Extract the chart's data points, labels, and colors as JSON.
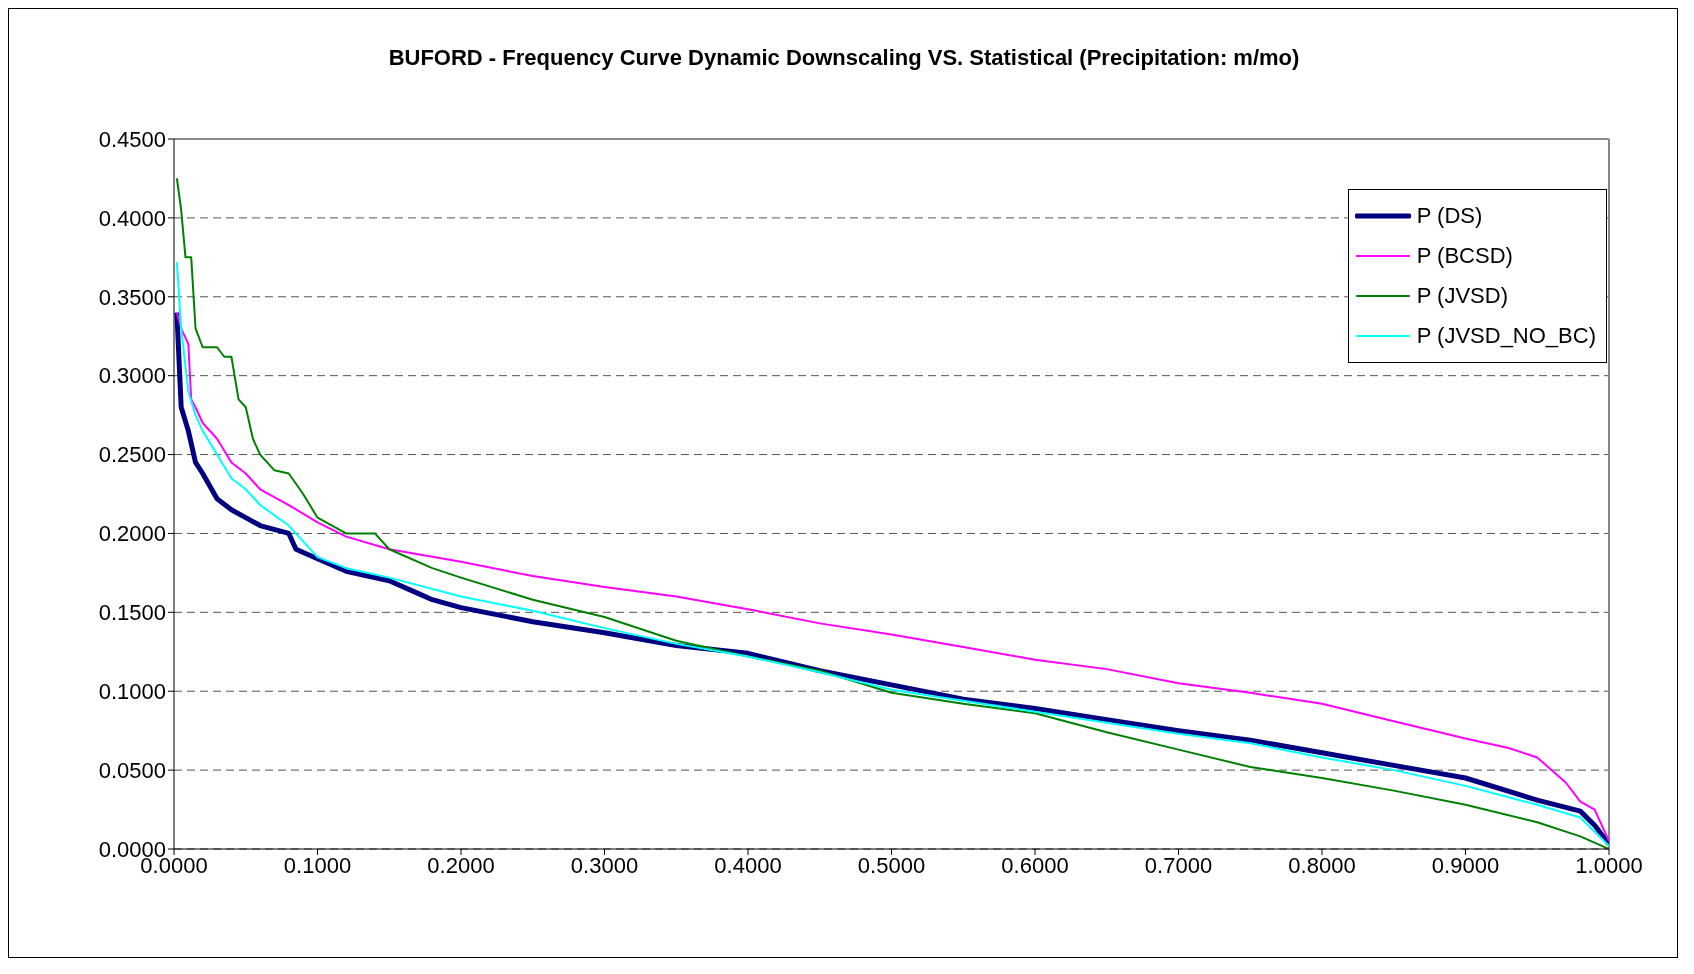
{
  "chart_data": {
    "type": "line",
    "title": "BUFORD - Frequency Curve Dynamic Downscaling VS. Statistical (Precipitation: m/mo)",
    "xlim": [
      0,
      1
    ],
    "ylim": [
      0,
      0.45
    ],
    "xticks": [
      {
        "value": 0,
        "label": "0.0000"
      },
      {
        "value": 0.1,
        "label": "0.1000"
      },
      {
        "value": 0.2,
        "label": "0.2000"
      },
      {
        "value": 0.3,
        "label": "0.3000"
      },
      {
        "value": 0.4,
        "label": "0.4000"
      },
      {
        "value": 0.5,
        "label": "0.5000"
      },
      {
        "value": 0.6,
        "label": "0.6000"
      },
      {
        "value": 0.7,
        "label": "0.7000"
      },
      {
        "value": 0.8,
        "label": "0.8000"
      },
      {
        "value": 0.9,
        "label": "0.9000"
      },
      {
        "value": 1,
        "label": "1.0000"
      }
    ],
    "yticks": [
      {
        "value": 0,
        "label": "0.0000"
      },
      {
        "value": 0.05,
        "label": "0.0500"
      },
      {
        "value": 0.1,
        "label": "0.1000"
      },
      {
        "value": 0.15,
        "label": "0.1500"
      },
      {
        "value": 0.2,
        "label": "0.2000"
      },
      {
        "value": 0.25,
        "label": "0.2500"
      },
      {
        "value": 0.3,
        "label": "0.3000"
      },
      {
        "value": 0.35,
        "label": "0.3500"
      },
      {
        "value": 0.4,
        "label": "0.4000"
      },
      {
        "value": 0.45,
        "label": "0.4500"
      }
    ],
    "grid": "y",
    "legend": "top right",
    "marker": "none",
    "line_style": "solid",
    "series": [
      {
        "name": "P (DS)",
        "color": "#000080",
        "x": [
          0.002,
          0.005,
          0.01,
          0.015,
          0.02,
          0.03,
          0.04,
          0.05,
          0.06,
          0.08,
          0.085,
          0.1,
          0.12,
          0.15,
          0.17,
          0.18,
          0.2,
          0.25,
          0.3,
          0.35,
          0.4,
          0.45,
          0.5,
          0.55,
          0.6,
          0.65,
          0.7,
          0.75,
          0.8,
          0.85,
          0.9,
          0.95,
          0.98,
          0.99,
          1.0
        ],
        "values": [
          0.34,
          0.28,
          0.265,
          0.245,
          0.238,
          0.222,
          0.215,
          0.21,
          0.205,
          0.2,
          0.19,
          0.184,
          0.176,
          0.17,
          0.162,
          0.158,
          0.153,
          0.144,
          0.137,
          0.129,
          0.124,
          0.113,
          0.104,
          0.095,
          0.089,
          0.082,
          0.075,
          0.069,
          0.061,
          0.053,
          0.045,
          0.031,
          0.024,
          0.015,
          0.003
        ]
      },
      {
        "name": "P (BCSD)",
        "color": "#ff00ff",
        "x": [
          0.002,
          0.005,
          0.01,
          0.012,
          0.015,
          0.02,
          0.03,
          0.04,
          0.05,
          0.06,
          0.08,
          0.1,
          0.12,
          0.15,
          0.2,
          0.25,
          0.3,
          0.35,
          0.4,
          0.45,
          0.5,
          0.55,
          0.6,
          0.65,
          0.7,
          0.75,
          0.8,
          0.85,
          0.9,
          0.93,
          0.95,
          0.97,
          0.98,
          0.99,
          1.0
        ],
        "values": [
          0.34,
          0.33,
          0.32,
          0.285,
          0.28,
          0.27,
          0.26,
          0.245,
          0.238,
          0.228,
          0.218,
          0.207,
          0.198,
          0.19,
          0.182,
          0.173,
          0.166,
          0.16,
          0.152,
          0.143,
          0.136,
          0.128,
          0.12,
          0.114,
          0.105,
          0.099,
          0.092,
          0.081,
          0.07,
          0.064,
          0.058,
          0.042,
          0.03,
          0.025,
          0.005
        ]
      },
      {
        "name": "P (JVSD)",
        "color": "#008000",
        "x": [
          0.002,
          0.005,
          0.008,
          0.012,
          0.015,
          0.02,
          0.03,
          0.035,
          0.04,
          0.045,
          0.05,
          0.055,
          0.06,
          0.07,
          0.08,
          0.09,
          0.1,
          0.12,
          0.14,
          0.15,
          0.18,
          0.2,
          0.25,
          0.3,
          0.35,
          0.4,
          0.45,
          0.5,
          0.55,
          0.6,
          0.65,
          0.7,
          0.75,
          0.8,
          0.85,
          0.9,
          0.95,
          0.98,
          1.0
        ],
        "values": [
          0.425,
          0.405,
          0.375,
          0.375,
          0.33,
          0.318,
          0.318,
          0.312,
          0.312,
          0.285,
          0.28,
          0.26,
          0.25,
          0.24,
          0.238,
          0.225,
          0.21,
          0.2,
          0.2,
          0.19,
          0.178,
          0.172,
          0.158,
          0.147,
          0.132,
          0.122,
          0.113,
          0.099,
          0.092,
          0.086,
          0.074,
          0.063,
          0.052,
          0.045,
          0.037,
          0.028,
          0.017,
          0.008,
          0.0
        ]
      },
      {
        "name": "P (JVSD_NO_BC)",
        "color": "#00ffff",
        "x": [
          0.002,
          0.005,
          0.01,
          0.015,
          0.02,
          0.03,
          0.04,
          0.05,
          0.06,
          0.08,
          0.1,
          0.12,
          0.15,
          0.2,
          0.25,
          0.3,
          0.35,
          0.4,
          0.45,
          0.5,
          0.55,
          0.6,
          0.65,
          0.7,
          0.75,
          0.8,
          0.85,
          0.9,
          0.95,
          0.98,
          1.0
        ],
        "values": [
          0.372,
          0.33,
          0.29,
          0.275,
          0.265,
          0.25,
          0.235,
          0.228,
          0.218,
          0.205,
          0.185,
          0.178,
          0.172,
          0.16,
          0.151,
          0.14,
          0.13,
          0.122,
          0.112,
          0.101,
          0.094,
          0.087,
          0.08,
          0.073,
          0.067,
          0.058,
          0.05,
          0.04,
          0.028,
          0.02,
          0.002
        ]
      }
    ]
  }
}
